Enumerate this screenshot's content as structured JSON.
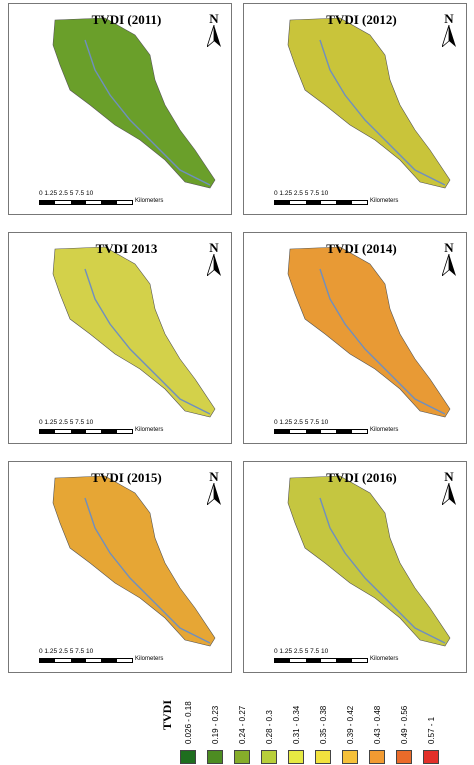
{
  "panels": [
    {
      "title": "TVDI (2011)",
      "north": "N",
      "scale_nums": "0  1.25 2.5      5       7.5      10",
      "scale_unit": "Kilometers",
      "fill": "#6a9f2a"
    },
    {
      "title": "TVDI (2012)",
      "north": "N",
      "scale_nums": "0  1.25 2.5      5       7.5      10",
      "scale_unit": "Kilometers",
      "fill": "#c9c43a"
    },
    {
      "title": "TVDI 2013",
      "north": "N",
      "scale_nums": "0  1.25 2.5      5       7.5      10",
      "scale_unit": "Kilometers",
      "fill": "#d3d14a"
    },
    {
      "title": "TVDI (2014)",
      "north": "N",
      "scale_nums": "0  1.25 2.5      5       7.5      10",
      "scale_unit": "Kilometers",
      "fill": "#e89a35"
    },
    {
      "title": "TVDI (2015)",
      "north": "N",
      "scale_nums": "0  1.25 2.5      5       7.5      10",
      "scale_unit": "Kilometers",
      "fill": "#e6a635"
    },
    {
      "title": "TVDI (2016)",
      "north": "N",
      "scale_nums": "0  1.25 2.5      5       7.5      10",
      "scale_unit": "Kilometers",
      "fill": "#c5c640"
    }
  ],
  "legend": {
    "title": "TVDI",
    "classes": [
      {
        "label": "0.026 - 0.18",
        "color": "#1f6e1f"
      },
      {
        "label": "0.19 - 0.23",
        "color": "#4d8c22"
      },
      {
        "label": "0.24 - 0.27",
        "color": "#86ad2a"
      },
      {
        "label": "0.28 - 0.3",
        "color": "#b8cf3a"
      },
      {
        "label": "0.31 - 0.34",
        "color": "#e6ea43"
      },
      {
        "label": "0.35 - 0.38",
        "color": "#f2e23e"
      },
      {
        "label": "0.39 - 0.42",
        "color": "#f6c13a"
      },
      {
        "label": "0.43 - 0.48",
        "color": "#f29b32"
      },
      {
        "label": "0.49 - 0.56",
        "color": "#ea6b2a"
      },
      {
        "label": "0.57 - 1",
        "color": "#e2302a"
      }
    ]
  }
}
